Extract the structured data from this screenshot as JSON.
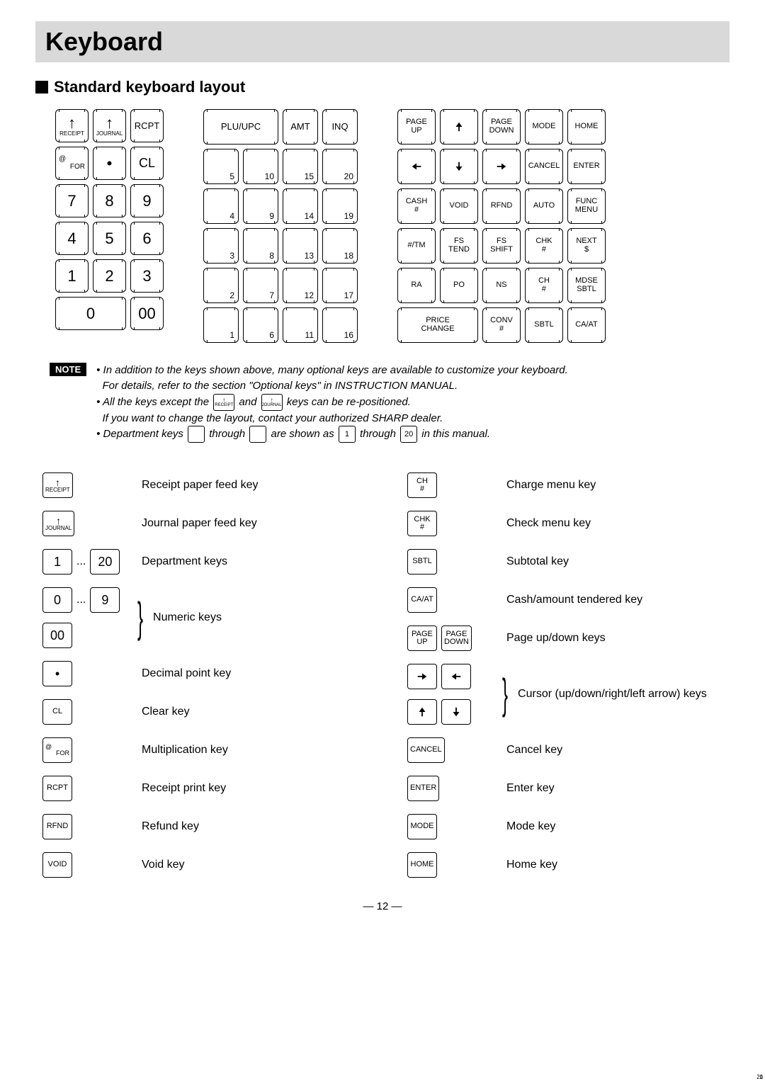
{
  "title": "Keyboard",
  "section": "Standard keyboard layout",
  "numeric": {
    "rcpt": "RCPT",
    "receipt": "RECEIPT",
    "journal": "JOURNAL",
    "for": "FOR",
    "dot": "•",
    "cl": "CL",
    "k7": "7",
    "k8": "8",
    "k9": "9",
    "k4": "4",
    "k5": "5",
    "k6": "6",
    "k1": "1",
    "k2": "2",
    "k3": "3",
    "k0": "0",
    "k00": "00"
  },
  "dept": {
    "plu": "PLU/UPC",
    "amt": "AMT",
    "inq": "INQ",
    "d5": "5",
    "d10": "10",
    "d15": "15",
    "d20": "20",
    "d4": "4",
    "d9": "9",
    "d14": "14",
    "d19": "19",
    "d3": "3",
    "d8": "8",
    "d13": "13",
    "d18": "18",
    "d2": "2",
    "d7": "7",
    "d12": "12",
    "d17": "17",
    "d1": "1",
    "d6": "6",
    "d11": "11",
    "d16": "16"
  },
  "func": {
    "pageup": "PAGE\nUP",
    "pagedown": "PAGE\nDOWN",
    "mode": "MODE",
    "home": "HOME",
    "cancel": "CANCEL",
    "enter": "ENTER",
    "cash": "CASH\n#",
    "void": "VOID",
    "rfnd": "RFND",
    "auto": "AUTO",
    "funcmenu": "FUNC\nMENU",
    "tm": "#/TM",
    "fstend": "FS\nTEND",
    "fsshift": "FS\nSHIFT",
    "chk": "CHK\n#",
    "next": "NEXT\n$",
    "ra": "RA",
    "po": "PO",
    "ns": "NS",
    "ch": "CH\n#",
    "mdse": "MDSE\nSBTL",
    "price": "PRICE\nCHANGE",
    "conv": "CONV\n#",
    "sbtl": "SBTL",
    "caat": "CA/AT"
  },
  "note": {
    "badge": "NOTE",
    "l1a": "In addition to the keys shown above, many optional keys are available to customize your keyboard.",
    "l1b": "For details, refer to the section \"Optional keys\" in INSTRUCTION MANUAL.",
    "l2a": "All the keys except the ",
    "l2b": " and ",
    "l2c": " keys can be re-positioned.",
    "l2d": "If you want to change the layout, contact your authorized SHARP dealer.",
    "l3a": "Department keys ",
    "l3b": " through ",
    "l3c": " are shown as ",
    "l3d": " through ",
    "l3e": " in this manual.",
    "mini_receipt": "RECEIPT",
    "mini_journal": "JOURNAL",
    "mini_1": "1",
    "mini_20s": "20",
    "mini_1s": "1",
    "mini_20": "20"
  },
  "legend": {
    "left": [
      {
        "icons": [
          {
            "t": "col",
            "lines": [
              "↑",
              "RECEIPT"
            ],
            "fs": 8
          }
        ],
        "text": "Receipt paper feed key"
      },
      {
        "icons": [
          {
            "t": "col",
            "lines": [
              "↑",
              "JOURNAL"
            ],
            "fs": 8
          }
        ],
        "text": "Journal paper feed key"
      },
      {
        "icons": [
          {
            "t": "txt",
            "v": "1",
            "big": true
          },
          {
            "t": "dots"
          },
          {
            "t": "txt",
            "v": "20",
            "big": true
          }
        ],
        "text": "Department keys"
      },
      {
        "icons": [
          {
            "t": "txt",
            "v": "0",
            "big": true
          },
          {
            "t": "dots"
          },
          {
            "t": "txt",
            "v": "9",
            "big": true
          }
        ],
        "text": "",
        "brace": "open"
      },
      {
        "icons": [
          {
            "t": "txt",
            "v": "00",
            "big": true
          }
        ],
        "text": "Numeric keys",
        "brace": "close"
      },
      {
        "icons": [
          {
            "t": "txt",
            "v": "•",
            "big": true
          }
        ],
        "text": "Decimal point key"
      },
      {
        "icons": [
          {
            "t": "txt",
            "v": "CL"
          }
        ],
        "text": "Clear key"
      },
      {
        "icons": [
          {
            "t": "for"
          }
        ],
        "text": "Multiplication key"
      },
      {
        "icons": [
          {
            "t": "txt",
            "v": "RCPT"
          }
        ],
        "text": "Receipt print key"
      },
      {
        "icons": [
          {
            "t": "txt",
            "v": "RFND"
          }
        ],
        "text": "Refund key"
      },
      {
        "icons": [
          {
            "t": "txt",
            "v": "VOID"
          }
        ],
        "text": "Void key"
      }
    ],
    "right": [
      {
        "icons": [
          {
            "t": "col",
            "lines": [
              "CH",
              "#"
            ]
          }
        ],
        "text": "Charge menu key"
      },
      {
        "icons": [
          {
            "t": "col",
            "lines": [
              "CHK",
              "#"
            ]
          }
        ],
        "text": "Check menu key"
      },
      {
        "icons": [
          {
            "t": "txt",
            "v": "SBTL"
          }
        ],
        "text": "Subtotal key"
      },
      {
        "icons": [
          {
            "t": "txt",
            "v": "CA/AT"
          }
        ],
        "text": "Cash/amount tendered key"
      },
      {
        "icons": [
          {
            "t": "col",
            "lines": [
              "PAGE",
              "UP"
            ]
          },
          {
            "t": "col",
            "lines": [
              "PAGE",
              "DOWN"
            ]
          }
        ],
        "text": "Page up/down keys"
      },
      {
        "icons": [
          {
            "t": "arr",
            "d": "r"
          },
          {
            "t": "arr",
            "d": "l"
          }
        ],
        "text": "",
        "brace": "open"
      },
      {
        "icons": [
          {
            "t": "arr",
            "d": "u"
          },
          {
            "t": "arr",
            "d": "d"
          }
        ],
        "text": "Cursor (up/down/right/left arrow) keys",
        "brace": "close"
      },
      {
        "icons": [
          {
            "t": "txt",
            "v": "CANCEL"
          }
        ],
        "text": "Cancel key"
      },
      {
        "icons": [
          {
            "t": "txt",
            "v": "ENTER"
          }
        ],
        "text": "Enter key"
      },
      {
        "icons": [
          {
            "t": "txt",
            "v": "MODE"
          }
        ],
        "text": "Mode key"
      },
      {
        "icons": [
          {
            "t": "txt",
            "v": "HOME"
          }
        ],
        "text": "Home key"
      }
    ]
  },
  "page_num": "— 12 —"
}
